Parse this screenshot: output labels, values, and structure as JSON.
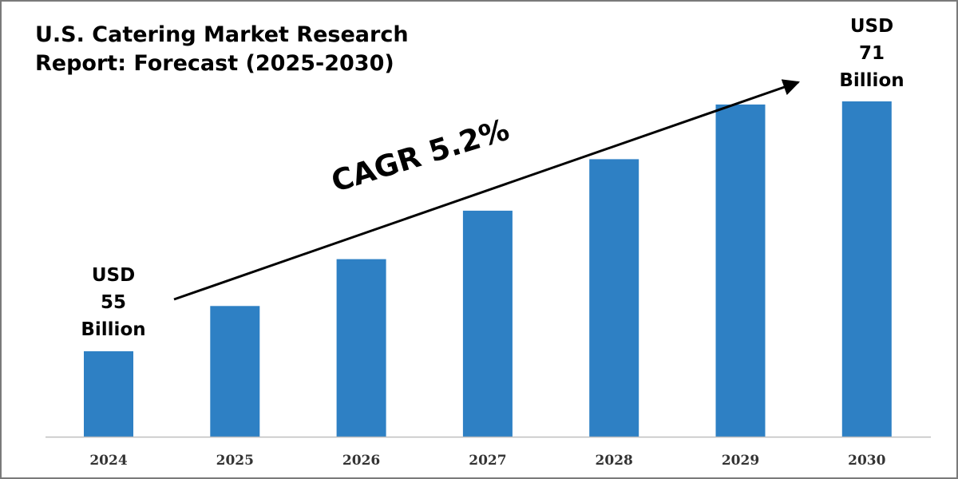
{
  "title": {
    "line1": "U.S. Catering Market Research",
    "line2": "Report: Forecast (2025-2030)"
  },
  "cagr_label": "CAGR 5.2%",
  "start_callout": {
    "line1": "USD",
    "line2": "55",
    "line3": "Billion"
  },
  "end_callout": {
    "line1": "USD",
    "line2": "71",
    "line3": "Billion"
  },
  "colors": {
    "bar": "#2e80c4",
    "axis": "#bfbfbf",
    "text": "#000000"
  },
  "chart_data": {
    "type": "bar",
    "title": "U.S. Catering Market Research Report: Forecast (2025-2030)",
    "categories": [
      "2024",
      "2025",
      "2026",
      "2027",
      "2028",
      "2029",
      "2030"
    ],
    "values": [
      55,
      57.9,
      60.9,
      64,
      67.3,
      70.8,
      71
    ],
    "annotations": [
      "USD 55 Billion",
      "USD 71 Billion",
      "CAGR 5.2%"
    ],
    "grid": false,
    "legend": "none"
  }
}
